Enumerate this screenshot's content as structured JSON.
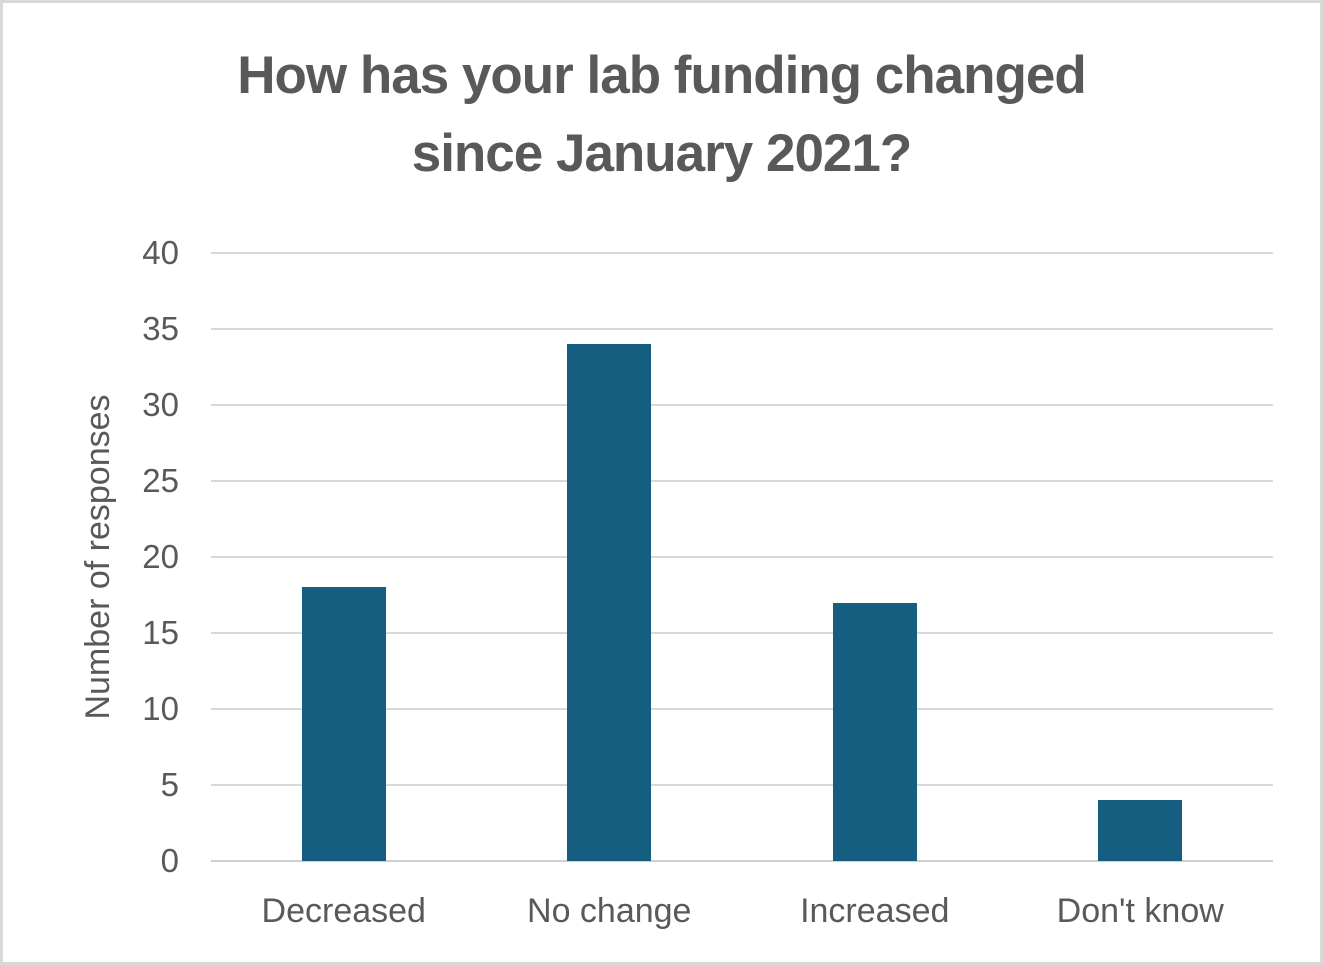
{
  "chart_data": {
    "type": "bar",
    "title": "How has your lab funding changed since January 2021?",
    "title_lines": [
      "How has your lab funding changed",
      "since January 2021?"
    ],
    "xlabel": "",
    "ylabel": "Number of responses",
    "categories": [
      "Decreased",
      "No change",
      "Increased",
      "Don't know"
    ],
    "values": [
      18,
      34,
      17,
      4
    ],
    "ylim": [
      0,
      40
    ],
    "ytick_step": 5,
    "yticks": [
      0,
      5,
      10,
      15,
      20,
      25,
      30,
      35,
      40
    ],
    "grid": "horizontal",
    "legend_position": "none",
    "colors": {
      "bar": "#165E80",
      "gridline": "#D9D9D9",
      "axis_line": "#CFCFCF",
      "text": "#595959",
      "background": "#FFFFFF",
      "border": "#D9D9D9"
    }
  }
}
